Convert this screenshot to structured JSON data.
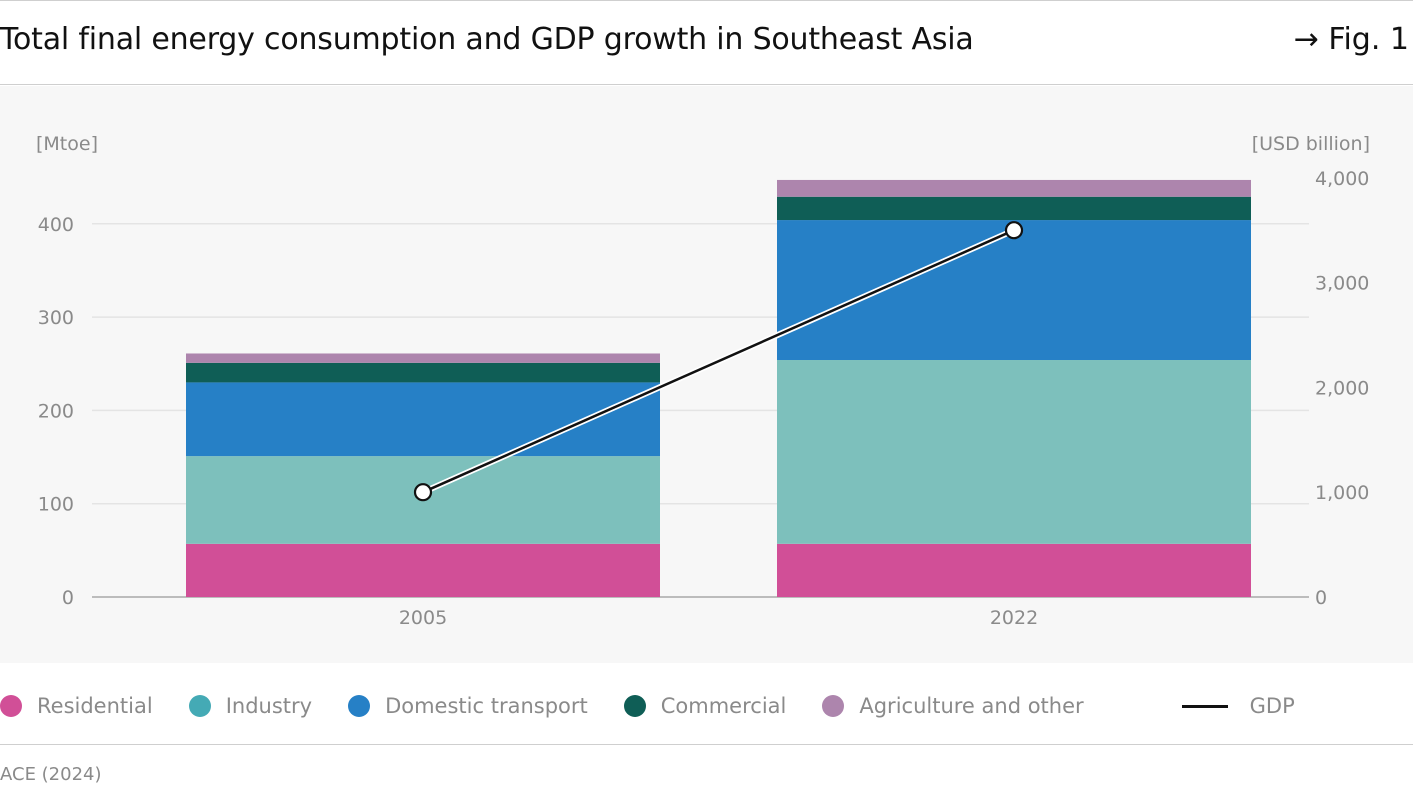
{
  "header": {
    "title": "Total final energy consumption and GDP growth in Southeast Asia",
    "fig_label": "→ Fig. 1"
  },
  "source": "ACE (2024)",
  "chart_data": {
    "type": "bar",
    "stacked": true,
    "categories": [
      "2005",
      "2022"
    ],
    "series": [
      {
        "name": "Residential",
        "color": "#d14f97",
        "values": [
          57,
          57
        ]
      },
      {
        "name": "Industry",
        "color": "#7dc0bc",
        "values": [
          94,
          197
        ]
      },
      {
        "name": "Domestic transport",
        "color": "#2680c6",
        "values": [
          79,
          150
        ]
      },
      {
        "name": "Commercial",
        "color": "#0f5e56",
        "values": [
          21,
          25
        ]
      },
      {
        "name": "Agriculture and other",
        "color": "#ad85ad",
        "values": [
          10,
          18
        ]
      }
    ],
    "line_series": {
      "name": "GDP",
      "color": "#111111",
      "axis": "right",
      "values": [
        1000,
        3500
      ]
    },
    "left_axis": {
      "label": "[Mtoe]",
      "ylim": [
        0,
        450
      ],
      "ticks": [
        "0",
        "100",
        "200",
        "300",
        "400"
      ]
    },
    "right_axis": {
      "label": "[USD billion]",
      "ylim": [
        0,
        4300
      ],
      "ticks": [
        "0",
        "1,000",
        "2,000",
        "3,000",
        "4,000"
      ]
    },
    "grid": true,
    "legend_position": "bottom"
  },
  "legend": {
    "items": [
      {
        "label": "Residential",
        "color": "#d14f97",
        "kind": "dot"
      },
      {
        "label": "Industry",
        "color": "#44aab5",
        "kind": "dot"
      },
      {
        "label": "Domestic transport",
        "color": "#2680c6",
        "kind": "dot"
      },
      {
        "label": "Commercial",
        "color": "#0f5e56",
        "kind": "dot"
      },
      {
        "label": "Agriculture and other",
        "color": "#ad85ad",
        "kind": "dot"
      },
      {
        "label": "GDP",
        "color": "#111111",
        "kind": "line"
      }
    ]
  }
}
